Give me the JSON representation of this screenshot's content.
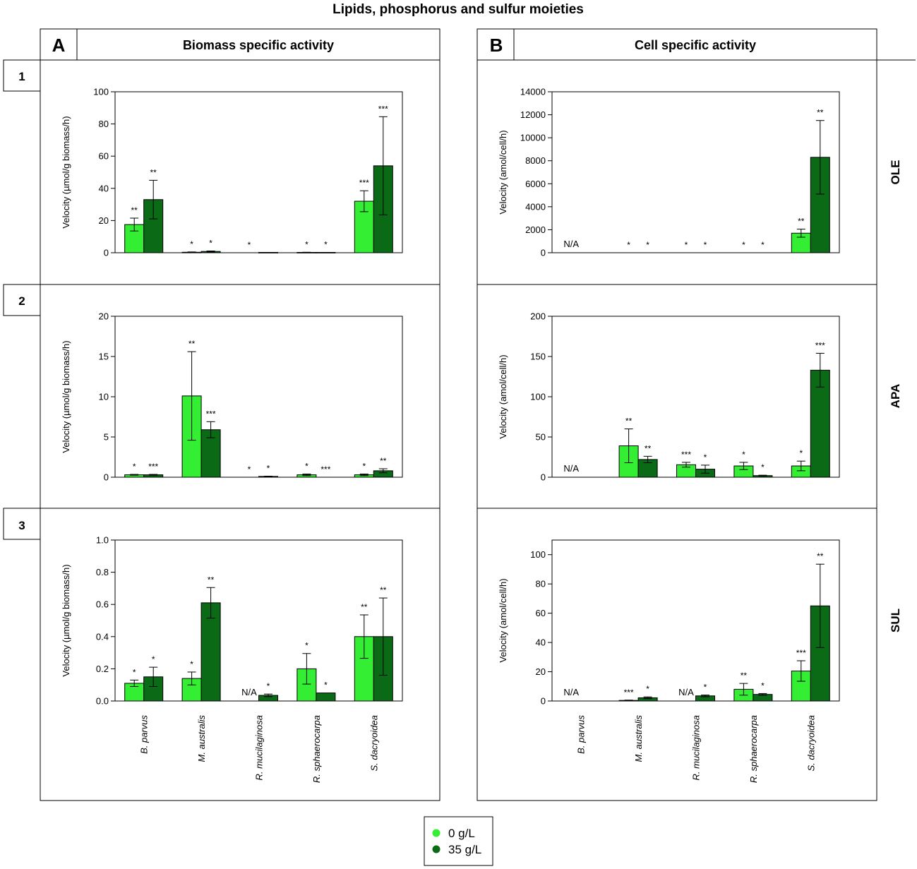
{
  "title": "Lipids, phosphorus and sulfur moieties",
  "columns": [
    {
      "letter": "A",
      "header": "Biomass specific activity"
    },
    {
      "letter": "B",
      "header": "Cell specific activity"
    }
  ],
  "rows": [
    {
      "number": "1",
      "side_label": "OLE"
    },
    {
      "number": "2",
      "side_label": "APA"
    },
    {
      "number": "3",
      "side_label": "SUL"
    }
  ],
  "legend": [
    {
      "label": "0 g/L",
      "color": "#33ee33"
    },
    {
      "label": "35 g/L",
      "color": "#0a6a16"
    }
  ],
  "na_label": "N/A",
  "chart_data": [
    {
      "id": "A1",
      "type": "bar",
      "ylabel": "Velocity (µmol/g biomass/h)",
      "ylim": [
        0,
        100
      ],
      "yticks": [
        "0",
        "20",
        "40",
        "60",
        "80",
        "100"
      ],
      "categories": [
        "B. parvus",
        "M. australis",
        "R. mucilaginosa",
        "R. sphaerocarpa",
        "S. dacryoidea"
      ],
      "series": [
        {
          "name": "0 g/L",
          "values": [
            17.5,
            0.3,
            0,
            0.2,
            32
          ],
          "errors": [
            4,
            0.2,
            0,
            0.1,
            6.5
          ],
          "sig": [
            "**",
            "*",
            "*",
            "*",
            "***"
          ],
          "na": [
            false,
            false,
            false,
            false,
            false
          ]
        },
        {
          "name": "35 g/L",
          "values": [
            33,
            0.8,
            0.2,
            0.2,
            54
          ],
          "errors": [
            12,
            0.3,
            0,
            0,
            30.5
          ],
          "sig": [
            "**",
            "*",
            "",
            "*",
            "***"
          ],
          "na": [
            false,
            false,
            false,
            false,
            false
          ]
        }
      ]
    },
    {
      "id": "B1",
      "type": "bar",
      "ylabel": "Velocity (amol/cell/h)",
      "ylim": [
        0,
        14000
      ],
      "yticks": [
        "0",
        "2000",
        "4000",
        "6000",
        "8000",
        "10000",
        "12000",
        "14000"
      ],
      "categories": [
        "B. parvus",
        "M. australis",
        "R. mucilaginosa",
        "R. sphaerocarpa",
        "S. dacryoidea"
      ],
      "series": [
        {
          "name": "0 g/L",
          "values": [
            0,
            0,
            0,
            0,
            1700
          ],
          "errors": [
            0,
            0,
            0,
            0,
            350
          ],
          "sig": [
            "",
            "*",
            "*",
            "*",
            "**"
          ],
          "na": [
            true,
            false,
            false,
            false,
            false
          ]
        },
        {
          "name": "35 g/L",
          "values": [
            0,
            0,
            0,
            0,
            8300
          ],
          "errors": [
            0,
            0,
            0,
            0,
            3200
          ],
          "sig": [
            "",
            "*",
            "*",
            "*",
            "**"
          ],
          "na": [
            false,
            false,
            false,
            false,
            false
          ]
        }
      ]
    },
    {
      "id": "A2",
      "type": "bar",
      "ylabel": "Velocity (µmol/g biomass/h)",
      "ylim": [
        0,
        20
      ],
      "yticks": [
        "0",
        "5",
        "10",
        "15",
        "20"
      ],
      "categories": [
        "B. parvus",
        "M. australis",
        "R. mucilaginosa",
        "R. sphaerocarpa",
        "S. dacryoidea"
      ],
      "series": [
        {
          "name": "0 g/L",
          "values": [
            0.3,
            10.1,
            0,
            0.3,
            0.3
          ],
          "errors": [
            0.05,
            5.5,
            0,
            0.1,
            0.1
          ],
          "sig": [
            "*",
            "**",
            "*",
            "*",
            "*"
          ],
          "na": [
            false,
            false,
            false,
            false,
            false
          ]
        },
        {
          "name": "35 g/L",
          "values": [
            0.3,
            5.9,
            0.1,
            0,
            0.8
          ],
          "errors": [
            0.05,
            1.0,
            0.03,
            0,
            0.25
          ],
          "sig": [
            "***",
            "***",
            "*",
            "***",
            "**"
          ],
          "na": [
            false,
            false,
            false,
            false,
            false
          ]
        }
      ]
    },
    {
      "id": "B2",
      "type": "bar",
      "ylabel": "Velocity (amol/cell/h)",
      "ylim": [
        0,
        200
      ],
      "yticks": [
        "0",
        "50",
        "100",
        "150",
        "200"
      ],
      "categories": [
        "B. parvus",
        "M. australis",
        "R. mucilaginosa",
        "R. sphaerocarpa",
        "S. dacryoidea"
      ],
      "series": [
        {
          "name": "0 g/L",
          "values": [
            0,
            39,
            15.5,
            14,
            14
          ],
          "errors": [
            0,
            21,
            3,
            4.5,
            6
          ],
          "sig": [
            "",
            "**",
            "***",
            "*",
            "*"
          ],
          "na": [
            true,
            false,
            false,
            false,
            false
          ]
        },
        {
          "name": "35 g/L",
          "values": [
            0,
            22,
            10,
            2,
            133
          ],
          "errors": [
            0,
            4,
            5,
            0.5,
            21
          ],
          "sig": [
            "",
            "**",
            "*",
            "*",
            "***"
          ],
          "na": [
            false,
            false,
            false,
            false,
            false
          ]
        }
      ]
    },
    {
      "id": "A3",
      "type": "bar",
      "ylabel": "Velocity (µmol/g biomass/h)",
      "ylim": [
        0,
        1.0
      ],
      "yticks": [
        "0.0",
        "0.2",
        "0.4",
        "0.6",
        "0.8",
        "1.0"
      ],
      "categories": [
        "B. parvus",
        "M. australis",
        "R. mucilaginosa",
        "R. sphaerocarpa",
        "S. dacryoidea"
      ],
      "series": [
        {
          "name": "0 g/L",
          "values": [
            0.11,
            0.14,
            0,
            0.2,
            0.4
          ],
          "errors": [
            0.02,
            0.04,
            0,
            0.095,
            0.135
          ],
          "sig": [
            "*",
            "*",
            "",
            "*",
            "**"
          ],
          "na": [
            false,
            false,
            true,
            false,
            false
          ]
        },
        {
          "name": "35 g/L",
          "values": [
            0.15,
            0.61,
            0.035,
            0.05,
            0.4
          ],
          "errors": [
            0.06,
            0.095,
            0.008,
            0,
            0.24
          ],
          "sig": [
            "*",
            "**",
            "*",
            "*",
            "**"
          ],
          "na": [
            false,
            false,
            false,
            false,
            false
          ]
        }
      ]
    },
    {
      "id": "B3",
      "type": "bar",
      "ylabel": "Velocity (amol/cell/h)",
      "ylim": [
        0,
        110
      ],
      "yticks": [
        "0",
        "20",
        "40",
        "60",
        "80",
        "100"
      ],
      "categories": [
        "B. parvus",
        "M. australis",
        "R. mucilaginosa",
        "R. sphaerocarpa",
        "S. dacryoidea"
      ],
      "series": [
        {
          "name": "0 g/L",
          "values": [
            0,
            0.4,
            0,
            8,
            20.5
          ],
          "errors": [
            0,
            0.2,
            0,
            4,
            7
          ],
          "sig": [
            "",
            "***",
            "",
            "**",
            "***"
          ],
          "na": [
            true,
            false,
            true,
            false,
            false
          ]
        },
        {
          "name": "35 g/L",
          "values": [
            0,
            2.2,
            3.5,
            4.5,
            65
          ],
          "errors": [
            0,
            0.6,
            0.6,
            0.6,
            28.5
          ],
          "sig": [
            "",
            "*",
            "*",
            "*",
            "**"
          ],
          "na": [
            false,
            false,
            false,
            false,
            false
          ]
        }
      ]
    }
  ]
}
